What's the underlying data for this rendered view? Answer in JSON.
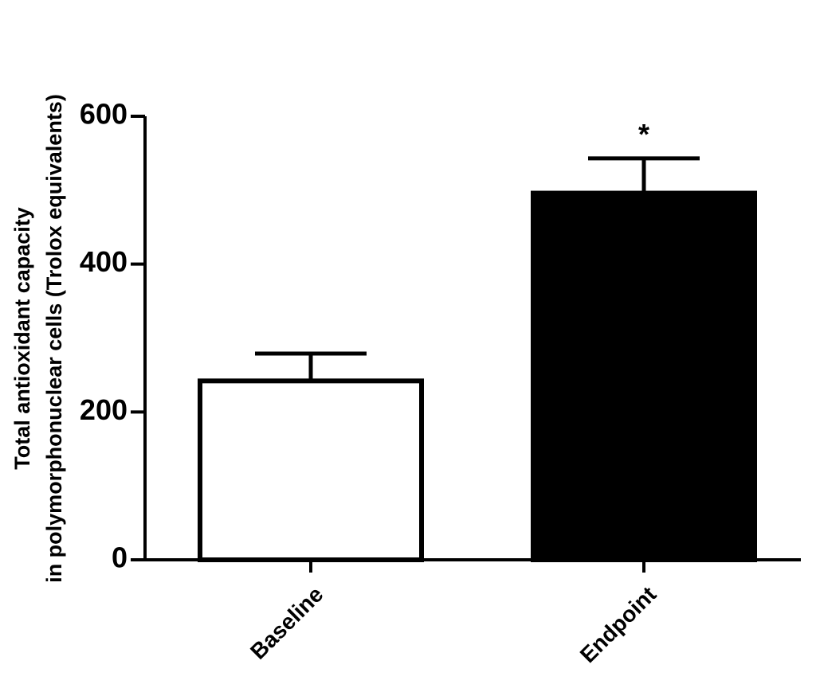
{
  "chart_data": {
    "type": "bar",
    "ylabel": [
      "Total antioxidant capacity",
      "in polymorphonuclear cells (Trolox equivalents)"
    ],
    "categories": [
      "Baseline",
      "Endpoint"
    ],
    "values": [
      242,
      496
    ],
    "errors": [
      37,
      47
    ],
    "colors": [
      "#ffffff",
      "#000000"
    ],
    "value_annotations": [
      null,
      "*"
    ],
    "ylim": [
      0,
      600
    ],
    "yticks": [
      0,
      200,
      400,
      600
    ]
  }
}
